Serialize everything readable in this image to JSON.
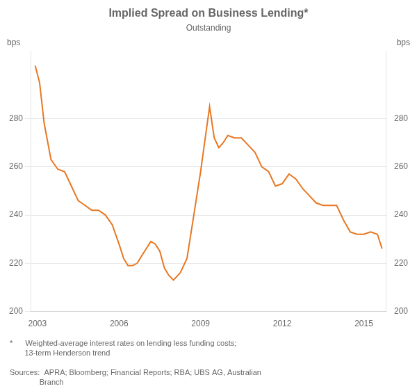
{
  "chart_data": {
    "type": "line",
    "title": "Implied Spread on Business Lending*",
    "subtitle": "Outstanding",
    "ylabel": "bps",
    "y2label": "bps",
    "annotations": [
      "*      Weighted-average interest rates on lending less funding costs;\n       13-term Henderson trend",
      "Sources:  APRA; Bloomberg; Financial Reports; RBA; UBS AG, Australian\n              Branch"
    ],
    "color": "#E87722",
    "grid": "y",
    "xlim": [
      2002.75,
      2015.83
    ],
    "xticks": [
      2003,
      2006,
      2009,
      2012,
      2015
    ],
    "ylim": [
      200,
      308
    ],
    "yticks": [
      200,
      220,
      240,
      260,
      280
    ],
    "y2lim": [
      200,
      308
    ],
    "y2ticks": [
      200,
      220,
      240,
      260,
      280
    ],
    "x": [
      2002.92,
      2003.08,
      2003.25,
      2003.5,
      2003.75,
      2004.0,
      2004.25,
      2004.5,
      2004.75,
      2005.0,
      2005.25,
      2005.5,
      2005.75,
      2006.0,
      2006.17,
      2006.33,
      2006.5,
      2006.67,
      2006.83,
      2007.0,
      2007.17,
      2007.33,
      2007.5,
      2007.67,
      2007.83,
      2008.0,
      2008.25,
      2008.5,
      2008.75,
      2009.0,
      2009.17,
      2009.33,
      2009.5,
      2009.67,
      2009.83,
      2010.0,
      2010.25,
      2010.5,
      2010.75,
      2011.0,
      2011.25,
      2011.5,
      2011.75,
      2012.0,
      2012.25,
      2012.5,
      2012.75,
      2013.0,
      2013.25,
      2013.5,
      2013.75,
      2014.0,
      2014.25,
      2014.5,
      2014.75,
      2015.0,
      2015.25,
      2015.5,
      2015.67
    ],
    "values": [
      302,
      295,
      278,
      263,
      259,
      258,
      252,
      246,
      244,
      242,
      242,
      240,
      236,
      228,
      222,
      219,
      219,
      220,
      223,
      226,
      229,
      228,
      225,
      218,
      215,
      213,
      216,
      222,
      240,
      258,
      272,
      285,
      272,
      268,
      270,
      273,
      272,
      272,
      269,
      266,
      260,
      258,
      252,
      253,
      257,
      255,
      251,
      248,
      245,
      244,
      244,
      244,
      238,
      233,
      232,
      232,
      233,
      232,
      226
    ]
  }
}
